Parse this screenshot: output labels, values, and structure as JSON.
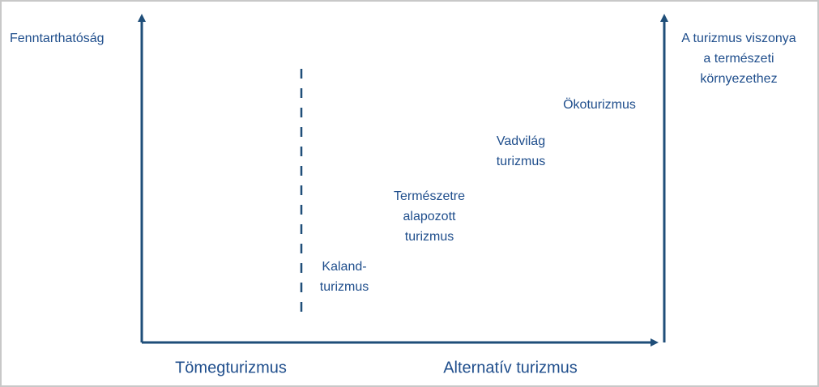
{
  "y_axis_label": "Fenntarthatóság",
  "right_axis_label": [
    "A turizmus viszonya",
    "a természeti",
    "környezethez"
  ],
  "x_labels": [
    "Tömegturizmus",
    "Alternatív turizmus"
  ],
  "items": [
    {
      "lines": [
        "Kaland-",
        "turizmus"
      ]
    },
    {
      "lines": [
        "Természetre",
        "alapozott",
        "turizmus"
      ]
    },
    {
      "lines": [
        "Vadvilág",
        "turizmus"
      ]
    },
    {
      "lines": [
        "Ökoturizmus"
      ]
    }
  ]
}
